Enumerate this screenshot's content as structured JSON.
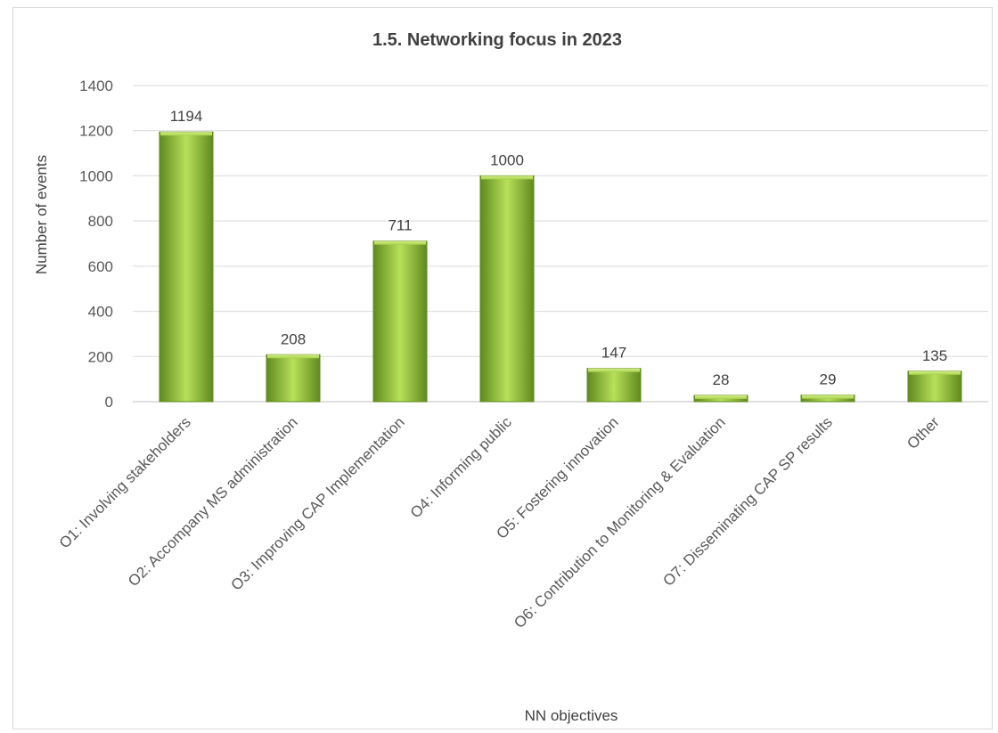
{
  "chart_data": {
    "type": "bar",
    "title": "1.5. Networking focus in 2023",
    "xlabel": "NN objectives",
    "ylabel": "Number of events",
    "categories": [
      "O1: Involving stakeholders",
      "O2: Accompany MS administration",
      "O3: Improving CAP Implementation",
      "O4: Informing public",
      "O5: Fostering innovation",
      "O6: Contribution to Monitoring & Evaluation",
      "O7: Disseminating CAP SP results",
      "Other"
    ],
    "values": [
      1194,
      208,
      711,
      1000,
      147,
      28,
      29,
      135
    ],
    "data_labels": [
      "1194",
      "208",
      "711",
      "1000",
      "147",
      "28",
      "29",
      "135"
    ],
    "ylim": [
      0,
      1400
    ],
    "yticks": [
      0,
      200,
      400,
      600,
      800,
      1000,
      1200,
      1400
    ],
    "ytick_labels": [
      "0",
      "200",
      "400",
      "600",
      "800",
      "1000",
      "1200",
      "1400"
    ],
    "grid": true,
    "legend": "none",
    "colors": {
      "bar_light": "#b8e05a",
      "bar_mid": "#92c63c",
      "bar_dark": "#5f8a1e",
      "gridline": "#d9d9d9",
      "axis": "#bfbfbf"
    }
  }
}
